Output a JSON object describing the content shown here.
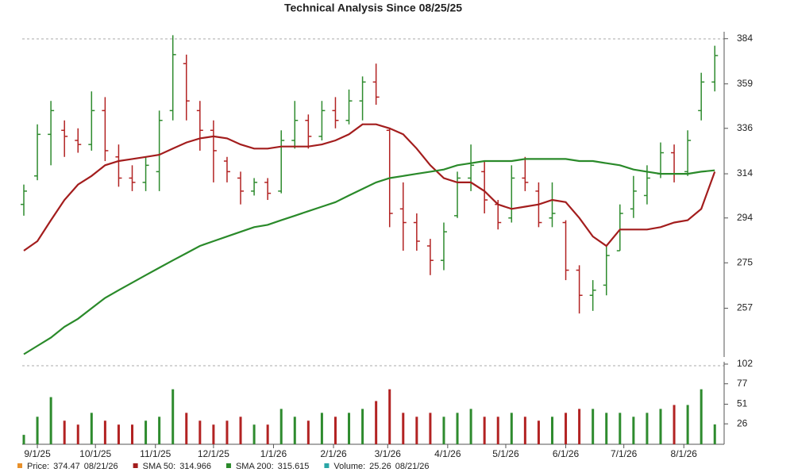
{
  "chart_data": {
    "type": "ohlc",
    "title": "Technical Analysis Since 08/25/25",
    "log_scale": true,
    "up_color": "#2e8b2e",
    "down_color": "#b22222",
    "xlim": [
      "2025-08-25",
      "2026-08-21"
    ],
    "xticks": [
      {
        "value": "2025-09-01",
        "label": "9/1/25"
      },
      {
        "value": "2025-10-01",
        "label": "10/1/25"
      },
      {
        "value": "2025-11-01",
        "label": "11/1/25"
      },
      {
        "value": "2025-12-01",
        "label": "12/1/25"
      },
      {
        "value": "2026-01-01",
        "label": "1/1/26"
      },
      {
        "value": "2026-02-01",
        "label": "2/1/26"
      },
      {
        "value": "2026-03-01",
        "label": "3/1/26"
      },
      {
        "value": "2026-04-01",
        "label": "4/1/26"
      },
      {
        "value": "2026-05-01",
        "label": "5/1/26"
      },
      {
        "value": "2026-06-01",
        "label": "6/1/26"
      },
      {
        "value": "2026-07-01",
        "label": "7/1/26"
      },
      {
        "value": "2026-08-01",
        "label": "8/1/26"
      }
    ],
    "ylim": [
      239,
      388
    ],
    "yticks": [
      257,
      275,
      294,
      314,
      336,
      359,
      384
    ],
    "x": [
      "2025-08-25",
      "2025-09-01",
      "2025-09-08",
      "2025-09-15",
      "2025-09-22",
      "2025-09-29",
      "2025-10-06",
      "2025-10-13",
      "2025-10-20",
      "2025-10-27",
      "2025-11-03",
      "2025-11-10",
      "2025-11-17",
      "2025-11-24",
      "2025-12-01",
      "2025-12-08",
      "2025-12-15",
      "2025-12-22",
      "2025-12-29",
      "2026-01-05",
      "2026-01-12",
      "2026-01-19",
      "2026-01-26",
      "2026-02-02",
      "2026-02-09",
      "2026-02-16",
      "2026-02-23",
      "2026-03-02",
      "2026-03-09",
      "2026-03-16",
      "2026-03-23",
      "2026-03-30",
      "2026-04-06",
      "2026-04-13",
      "2026-04-20",
      "2026-04-27",
      "2026-05-04",
      "2026-05-11",
      "2026-05-18",
      "2026-05-25",
      "2026-06-01",
      "2026-06-08",
      "2026-06-15",
      "2026-06-22",
      "2026-06-29",
      "2026-07-06",
      "2026-07-13",
      "2026-07-20",
      "2026-07-27",
      "2026-08-03",
      "2026-08-10",
      "2026-08-17"
    ],
    "open": [
      300,
      313,
      333,
      335,
      330,
      328,
      345,
      322,
      312,
      310,
      315,
      345,
      370,
      345,
      335,
      320,
      312,
      306,
      310,
      306,
      330,
      340,
      332,
      345,
      340,
      350,
      360,
      335,
      298,
      292,
      282,
      276,
      295,
      312,
      315,
      300,
      294,
      312,
      306,
      294,
      292,
      272,
      262,
      266,
      280,
      298,
      304,
      314,
      324,
      315,
      345,
      360
    ],
    "high": [
      309,
      338,
      350,
      340,
      336,
      355,
      352,
      328,
      318,
      322,
      345,
      386,
      375,
      350,
      340,
      322,
      315,
      312,
      312,
      335,
      350,
      343,
      350,
      352,
      356,
      363,
      370,
      336,
      310,
      296,
      285,
      292,
      315,
      328,
      320,
      302,
      318,
      322,
      310,
      310,
      293,
      274,
      268,
      282,
      300,
      313,
      318,
      329,
      328,
      335,
      365,
      380
    ],
    "low": [
      295,
      311,
      318,
      322,
      324,
      325,
      320,
      308,
      306,
      306,
      306,
      340,
      340,
      325,
      310,
      310,
      300,
      304,
      302,
      305,
      326,
      326,
      330,
      336,
      338,
      340,
      348,
      290,
      280,
      280,
      270,
      272,
      294,
      306,
      296,
      289,
      292,
      306,
      290,
      290,
      268,
      255,
      256,
      262,
      280,
      294,
      300,
      312,
      310,
      313,
      340,
      355
    ],
    "close": [
      306,
      333,
      345,
      332,
      328,
      345,
      325,
      312,
      310,
      318,
      340,
      375,
      350,
      335,
      325,
      315,
      306,
      310,
      305,
      330,
      340,
      332,
      345,
      340,
      350,
      360,
      352,
      296,
      292,
      284,
      276,
      288,
      312,
      318,
      302,
      292,
      312,
      310,
      292,
      296,
      272,
      262,
      264,
      278,
      296,
      306,
      312,
      324,
      314,
      330,
      360,
      374.47
    ],
    "series": [
      {
        "name": "SMA 50",
        "color": "#a31d1d",
        "values": [
          280,
          284,
          293,
          302,
          309,
          313,
          318,
          320,
          321,
          322,
          323,
          326,
          329,
          331,
          332,
          331,
          328,
          326,
          326,
          327,
          327,
          327,
          328,
          330,
          333,
          338,
          338,
          336,
          333,
          326,
          318,
          312,
          310,
          310,
          306,
          300,
          298,
          299,
          300,
          302,
          301,
          294,
          286,
          282,
          289,
          289,
          289,
          290,
          292,
          293,
          298,
          314.966
        ]
      },
      {
        "name": "SMA 200",
        "color": "#2a8a2a",
        "values": [
          240,
          243,
          246,
          250,
          253,
          257,
          261,
          264,
          267,
          270,
          273,
          276,
          279,
          282,
          284,
          286,
          288,
          290,
          291,
          293,
          295,
          297,
          299,
          301,
          304,
          307,
          310,
          312,
          313,
          314,
          315,
          316,
          318,
          319,
          320,
          320,
          320,
          321,
          321,
          321,
          321,
          320,
          320,
          319,
          318,
          316,
          315,
          314,
          314,
          314,
          315,
          315.615
        ]
      }
    ],
    "volume": {
      "ylim": [
        0,
        105
      ],
      "yticks": [
        26,
        51,
        77,
        102
      ],
      "values": [
        12,
        35,
        60,
        30,
        25,
        40,
        30,
        25,
        25,
        30,
        35,
        70,
        40,
        30,
        25,
        30,
        35,
        25,
        25,
        45,
        35,
        30,
        40,
        35,
        40,
        45,
        55,
        70,
        40,
        35,
        40,
        35,
        40,
        45,
        35,
        35,
        40,
        35,
        30,
        35,
        40,
        45,
        45,
        40,
        40,
        35,
        40,
        45,
        50,
        50,
        70,
        25.26
      ]
    },
    "legend": [
      {
        "label": "Price:",
        "value": 374.47,
        "date": "08/21/26",
        "color": "#e8902a"
      },
      {
        "label": "SMA 50:",
        "value": 314.966,
        "color": "#a31d1d"
      },
      {
        "label": "SMA 200:",
        "value": 315.615,
        "color": "#2a8a2a"
      },
      {
        "label": "Volume:",
        "value": 25.26,
        "date": "08/21/26",
        "color": "#2aa6a6"
      }
    ]
  }
}
